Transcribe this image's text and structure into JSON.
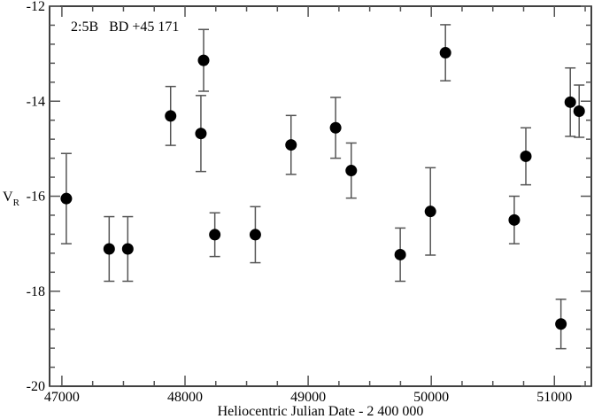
{
  "chart_data": {
    "type": "scatter",
    "title": "",
    "annotation": "2:5B   BD +45 171",
    "xlabel": "Heliocentric Julian Date - 2 400 000",
    "ylabel": "V",
    "ylabel_subscript": "R",
    "xlim": [
      46900,
      51300
    ],
    "ylim": [
      -20,
      -12
    ],
    "xticks": [
      47000,
      48000,
      49000,
      50000,
      51000
    ],
    "yticks": [
      -20,
      -18,
      -16,
      -14,
      -12
    ],
    "x_minor_step": 250,
    "y_minor_step": 0.4,
    "grid": false,
    "marker_color": "#000000",
    "errorbar_color": "#555555",
    "points": [
      {
        "x": 47036,
        "y": -16.05,
        "err": 0.95
      },
      {
        "x": 47384,
        "y": -17.11,
        "err": 0.68
      },
      {
        "x": 47535,
        "y": -17.11,
        "err": 0.68
      },
      {
        "x": 47883,
        "y": -14.31,
        "err": 0.62
      },
      {
        "x": 48129,
        "y": -14.68,
        "err": 0.8
      },
      {
        "x": 48151,
        "y": -13.14,
        "err": 0.65
      },
      {
        "x": 48242,
        "y": -16.81,
        "err": 0.46
      },
      {
        "x": 48571,
        "y": -16.81,
        "err": 0.59
      },
      {
        "x": 48861,
        "y": -14.92,
        "err": 0.62
      },
      {
        "x": 49223,
        "y": -14.56,
        "err": 0.64
      },
      {
        "x": 49350,
        "y": -15.46,
        "err": 0.58
      },
      {
        "x": 49748,
        "y": -17.23,
        "err": 0.56
      },
      {
        "x": 49993,
        "y": -16.32,
        "err": 0.92
      },
      {
        "x": 50115,
        "y": -12.98,
        "err": 0.59
      },
      {
        "x": 50674,
        "y": -16.5,
        "err": 0.5
      },
      {
        "x": 50768,
        "y": -15.16,
        "err": 0.6
      },
      {
        "x": 51053,
        "y": -18.69,
        "err": 0.52
      },
      {
        "x": 51129,
        "y": -14.02,
        "err": 0.72
      },
      {
        "x": 51201,
        "y": -14.21,
        "err": 0.55
      }
    ]
  }
}
